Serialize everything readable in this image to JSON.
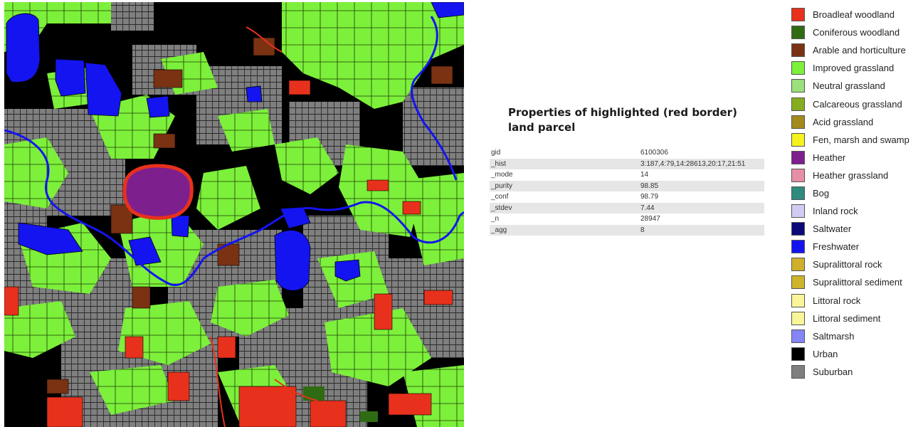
{
  "properties": {
    "title": "Properties of highlighted (red border) land parcel",
    "rows": [
      {
        "key": "gid",
        "value": "6100306"
      },
      {
        "key": "_hist",
        "value": "3:187,4:79,14:28613,20:17,21:51"
      },
      {
        "key": "_mode",
        "value": "14"
      },
      {
        "key": "_purity",
        "value": "98.85"
      },
      {
        "key": "_conf",
        "value": "98.79"
      },
      {
        "key": "_stdev",
        "value": "7.44"
      },
      {
        "key": "_n",
        "value": "28947"
      },
      {
        "key": "_agg",
        "value": "8"
      }
    ]
  },
  "legend": [
    {
      "label": "Broadleaf woodland",
      "color": "#e8311c"
    },
    {
      "label": "Coniferous woodland",
      "color": "#2f6b12"
    },
    {
      "label": "Arable and horticulture",
      "color": "#7a3213"
    },
    {
      "label": "Improved grassland",
      "color": "#7cf03a"
    },
    {
      "label": "Neutral grassland",
      "color": "#9be07a"
    },
    {
      "label": "Calcareous grassland",
      "color": "#86ad1f"
    },
    {
      "label": "Acid grassland",
      "color": "#a38a1c"
    },
    {
      "label": "Fen, marsh and swamp",
      "color": "#f6f21e"
    },
    {
      "label": "Heather",
      "color": "#7e1f8e"
    },
    {
      "label": "Heather grassland",
      "color": "#e68fa5"
    },
    {
      "label": "Bog",
      "color": "#2f8b7e"
    },
    {
      "label": "Inland rock",
      "color": "#d1cdf2"
    },
    {
      "label": "Saltwater",
      "color": "#0a0a78"
    },
    {
      "label": "Freshwater",
      "color": "#1414f0"
    },
    {
      "label": "Supralittoral rock",
      "color": "#cfb02a"
    },
    {
      "label": "Supralittoral sediment",
      "color": "#cdb42a"
    },
    {
      "label": "Littoral rock",
      "color": "#fbf59a"
    },
    {
      "label": "Littoral sediment",
      "color": "#fbf59a"
    },
    {
      "label": "Saltmarsh",
      "color": "#8585f5"
    },
    {
      "label": "Urban",
      "color": "#000000"
    },
    {
      "label": "Suburban",
      "color": "#7f7f7f"
    }
  ]
}
